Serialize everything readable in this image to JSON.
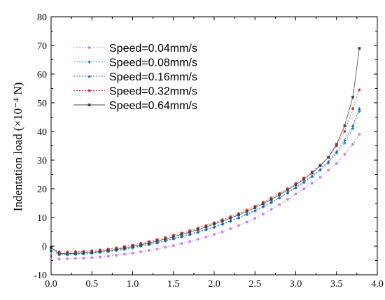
{
  "chart_data": {
    "type": "scatter",
    "title": "",
    "xlabel": "",
    "ylabel": "Indentation load (×10⁻⁴ N)",
    "xlim": [
      0.0,
      4.0
    ],
    "ylim": [
      -10,
      80
    ],
    "xticks": [
      "0.0",
      "0.5",
      "1.0",
      "1.5",
      "2.0",
      "2.5",
      "3.0",
      "3.5",
      "4.0"
    ],
    "yticks": [
      "-10",
      "0",
      "10",
      "20",
      "30",
      "40",
      "50",
      "60",
      "70",
      "80"
    ],
    "grid": false,
    "legend_position": "top-left",
    "series": [
      {
        "name": "Speed=0.04mm/s",
        "color": "#c77cf0",
        "marker": "circle",
        "x": [
          0.0,
          0.1,
          0.2,
          0.3,
          0.4,
          0.5,
          0.6,
          0.7,
          0.8,
          0.9,
          1.0,
          1.1,
          1.2,
          1.3,
          1.4,
          1.5,
          1.6,
          1.7,
          1.8,
          1.9,
          2.0,
          2.1,
          2.2,
          2.3,
          2.4,
          2.5,
          2.6,
          2.7,
          2.8,
          2.9,
          3.0,
          3.1,
          3.2,
          3.3,
          3.4,
          3.5,
          3.6,
          3.7,
          3.78
        ],
        "y": [
          -3.5,
          -4.5,
          -4.4,
          -4.3,
          -4.2,
          -4.0,
          -3.8,
          -3.5,
          -3.2,
          -2.8,
          -2.4,
          -2.0,
          -1.5,
          -1.0,
          -0.4,
          0.2,
          0.9,
          1.6,
          2.4,
          3.2,
          4.1,
          5.0,
          6.1,
          7.2,
          8.4,
          9.7,
          11.2,
          12.8,
          14.5,
          16.3,
          18.2,
          20.0,
          22.0,
          24.0,
          26.5,
          28.8,
          32.0,
          35.5,
          39.0
        ]
      },
      {
        "name": "Speed=0.08mm/s",
        "color": "#1fa088",
        "marker": "diamond",
        "x": [
          0.0,
          0.1,
          0.2,
          0.3,
          0.4,
          0.5,
          0.6,
          0.7,
          0.8,
          0.9,
          1.0,
          1.1,
          1.2,
          1.3,
          1.4,
          1.5,
          1.6,
          1.7,
          1.8,
          1.9,
          2.0,
          2.1,
          2.2,
          2.3,
          2.4,
          2.5,
          2.6,
          2.7,
          2.8,
          2.9,
          3.0,
          3.1,
          3.2,
          3.3,
          3.4,
          3.5,
          3.6,
          3.7,
          3.78
        ],
        "y": [
          -1.5,
          -3.0,
          -3.0,
          -2.9,
          -2.7,
          -2.5,
          -2.2,
          -1.9,
          -1.5,
          -1.1,
          -0.6,
          0.0,
          0.5,
          1.1,
          1.8,
          2.5,
          3.2,
          4.0,
          4.8,
          5.7,
          6.6,
          7.6,
          8.7,
          9.8,
          11.0,
          12.3,
          13.7,
          15.2,
          16.8,
          18.5,
          20.3,
          22.2,
          24.2,
          26.5,
          29.0,
          32.5,
          36.0,
          41.0,
          47.0
        ]
      },
      {
        "name": "Speed=0.16mm/s",
        "color": "#1f5fd8",
        "marker": "triangle",
        "x": [
          0.0,
          0.1,
          0.2,
          0.3,
          0.4,
          0.5,
          0.6,
          0.7,
          0.8,
          0.9,
          1.0,
          1.1,
          1.2,
          1.3,
          1.4,
          1.5,
          1.6,
          1.7,
          1.8,
          1.9,
          2.0,
          2.1,
          2.2,
          2.3,
          2.4,
          2.5,
          2.6,
          2.7,
          2.8,
          2.9,
          3.0,
          3.1,
          3.2,
          3.3,
          3.4,
          3.5,
          3.6,
          3.7,
          3.78
        ],
        "y": [
          -1.5,
          -2.8,
          -2.8,
          -2.7,
          -2.5,
          -2.3,
          -2.0,
          -1.7,
          -1.3,
          -0.9,
          -0.4,
          0.2,
          0.7,
          1.3,
          2.0,
          2.7,
          3.4,
          4.2,
          5.0,
          5.9,
          6.8,
          7.8,
          8.9,
          10.0,
          11.2,
          12.5,
          13.9,
          15.4,
          17.0,
          18.7,
          20.5,
          22.4,
          24.5,
          26.8,
          29.5,
          33.0,
          37.0,
          42.0,
          48.0
        ]
      },
      {
        "name": "Speed=0.32mm/s",
        "color": "#e0302a",
        "marker": "circle",
        "x": [
          0.0,
          0.1,
          0.2,
          0.3,
          0.4,
          0.5,
          0.6,
          0.7,
          0.8,
          0.9,
          1.0,
          1.1,
          1.2,
          1.3,
          1.4,
          1.5,
          1.6,
          1.7,
          1.8,
          1.9,
          2.0,
          2.1,
          2.2,
          2.3,
          2.4,
          2.5,
          2.6,
          2.7,
          2.8,
          2.9,
          3.0,
          3.1,
          3.2,
          3.3,
          3.4,
          3.5,
          3.6,
          3.7,
          3.78
        ],
        "y": [
          -0.5,
          -2.0,
          -2.0,
          -1.9,
          -1.8,
          -1.6,
          -1.3,
          -1.0,
          -0.6,
          -0.1,
          0.4,
          1.0,
          1.6,
          2.3,
          3.0,
          3.8,
          4.6,
          5.4,
          6.3,
          7.2,
          8.2,
          9.2,
          10.3,
          11.4,
          12.6,
          13.9,
          15.3,
          16.8,
          18.4,
          20.1,
          21.9,
          23.8,
          25.9,
          28.3,
          31.0,
          35.0,
          40.0,
          48.0,
          54.5
        ]
      },
      {
        "name": "Speed=0.64mm/s",
        "color": "#444444",
        "marker": "square",
        "x": [
          0.0,
          0.1,
          0.2,
          0.3,
          0.4,
          0.5,
          0.6,
          0.7,
          0.8,
          0.9,
          1.0,
          1.1,
          1.2,
          1.3,
          1.4,
          1.5,
          1.6,
          1.7,
          1.8,
          1.9,
          2.0,
          2.1,
          2.2,
          2.3,
          2.4,
          2.5,
          2.6,
          2.7,
          2.8,
          2.9,
          3.0,
          3.1,
          3.2,
          3.3,
          3.4,
          3.5,
          3.6,
          3.7,
          3.78
        ],
        "y": [
          -0.5,
          -2.6,
          -2.6,
          -2.5,
          -2.3,
          -2.1,
          -1.8,
          -1.5,
          -1.1,
          -0.6,
          -0.1,
          0.5,
          1.1,
          1.8,
          2.5,
          3.3,
          4.1,
          4.9,
          5.8,
          6.7,
          7.7,
          8.7,
          9.8,
          10.9,
          12.1,
          13.4,
          14.8,
          16.3,
          17.9,
          19.6,
          21.4,
          23.3,
          25.5,
          28.0,
          31.0,
          35.5,
          42.0,
          52.0,
          69.0
        ]
      }
    ]
  }
}
